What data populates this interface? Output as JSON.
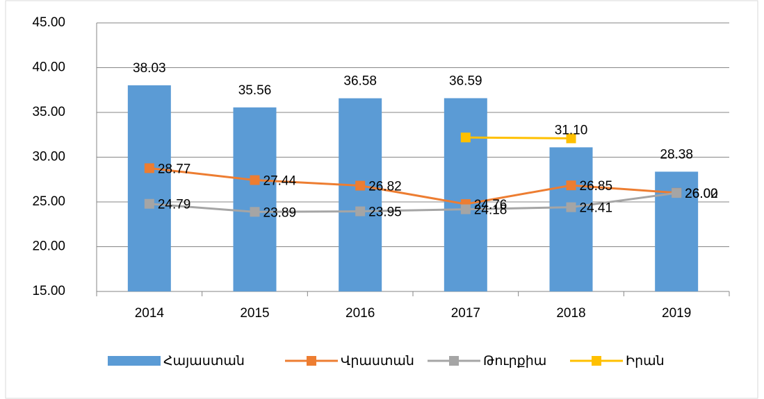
{
  "chart_data": {
    "type": "bar",
    "categories": [
      "2014",
      "2015",
      "2016",
      "2017",
      "2018",
      "2019"
    ],
    "ylim": [
      15,
      45
    ],
    "yticks": [
      {
        "value": 15,
        "label": "15.00"
      },
      {
        "value": 20,
        "label": "20.00"
      },
      {
        "value": 25,
        "label": "25.00"
      },
      {
        "value": 30,
        "label": "30.00"
      },
      {
        "value": 35,
        "label": "35.00"
      },
      {
        "value": 40,
        "label": "40.00"
      },
      {
        "value": 45,
        "label": "45.00"
      }
    ],
    "grid": true,
    "legend": "bottom",
    "series": [
      {
        "name": "Հայաստան",
        "type": "bar",
        "color": "#5b9bd5",
        "values": [
          38.03,
          35.56,
          36.58,
          36.59,
          31.1,
          28.38
        ],
        "value_labels": [
          "38.03",
          "35.56",
          "36.58",
          "36.59",
          "31.10",
          "28.38"
        ]
      },
      {
        "name": "Վրաստան",
        "type": "line",
        "color": "#ed7d31",
        "values": [
          28.77,
          27.44,
          26.82,
          24.76,
          26.85,
          26.02
        ],
        "value_labels": [
          "28.77",
          "27.44",
          "26.82",
          "24.76",
          "26.85",
          "26.02"
        ]
      },
      {
        "name": "Թուրքիա",
        "type": "line",
        "color": "#a5a5a5",
        "values": [
          24.79,
          23.89,
          23.95,
          24.18,
          24.41,
          26.0
        ],
        "value_labels": [
          "24.79",
          "23.89",
          "23.95",
          "24.18",
          "24.41",
          "26.00"
        ]
      },
      {
        "name": "Իրան",
        "type": "line",
        "color": "#ffc000",
        "values": [
          null,
          null,
          null,
          32.2,
          32.1,
          null
        ]
      }
    ]
  }
}
